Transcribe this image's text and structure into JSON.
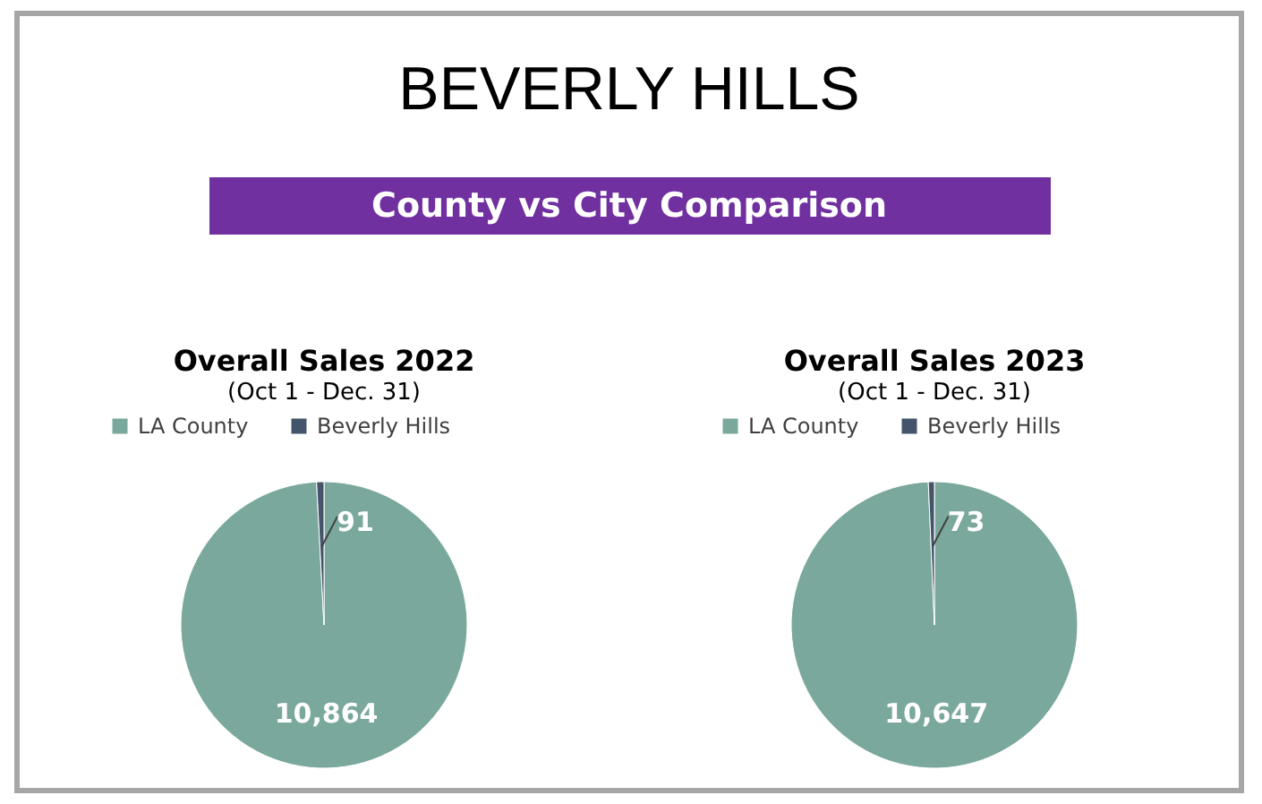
{
  "chart_data": [
    {
      "type": "other",
      "title": "BEVERLY HILLS",
      "subtitle": "County vs City Comparison"
    },
    {
      "type": "pie",
      "title": "Overall Sales 2022",
      "subtitle": "(Oct 1 - Dec. 31)",
      "categories": [
        "LA County",
        "Beverly Hills"
      ],
      "values": [
        10864,
        91
      ],
      "colors": [
        "#7aa89c",
        "#44546a"
      ],
      "value_labels": [
        "10,864",
        "91"
      ],
      "legend": "top"
    },
    {
      "type": "pie",
      "title": "Overall Sales 2023",
      "subtitle": "(Oct 1 - Dec. 31)",
      "categories": [
        "LA County",
        "Beverly Hills"
      ],
      "values": [
        10647,
        73
      ],
      "colors": [
        "#7aa89c",
        "#44546a"
      ],
      "value_labels": [
        "10,647",
        "73"
      ],
      "legend": "top"
    }
  ]
}
